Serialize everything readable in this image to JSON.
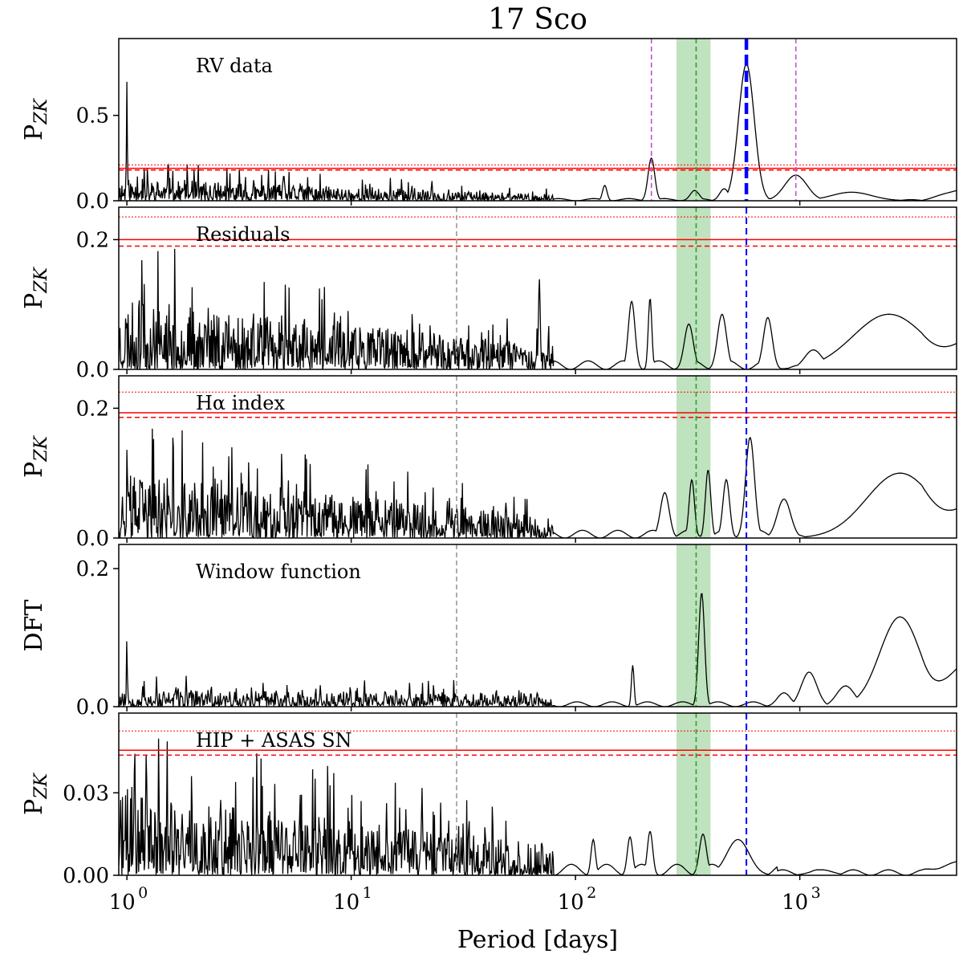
{
  "chart_data": {
    "type": "line",
    "title": "17 Sco",
    "xlabel": "Period [days]",
    "xscale": "log",
    "xlim": [
      0.92,
      5000
    ],
    "xticks": [
      {
        "value": 1,
        "label": "10",
        "exp": "0"
      },
      {
        "value": 10,
        "label": "10",
        "exp": "1"
      },
      {
        "value": 100,
        "label": "10",
        "exp": "2"
      },
      {
        "value": 1000,
        "label": "10",
        "exp": "3"
      }
    ],
    "shared_markers": {
      "green_band": {
        "from": 282,
        "to": 400,
        "color": "#2ca02c"
      },
      "green_line": {
        "x": 345,
        "color": "#2ca02c"
      },
      "gray_line": {
        "x": 29.5,
        "color": "#999999"
      },
      "blue_line": {
        "x": 578,
        "color": "#0000ff"
      },
      "magenta_lines": [
        {
          "x": 218
        },
        {
          "x": 960
        }
      ],
      "magenta_color": "#c050d0",
      "threshold_color": "#ff0000"
    },
    "panels": [
      {
        "ylabel": "P",
        "ylabel_sub": "ZK",
        "label": "RV data",
        "ylim": [
          0,
          0.95
        ],
        "yticks": [
          {
            "value": 0.0,
            "label": "0.0"
          },
          {
            "value": 0.5,
            "label": "0.5"
          }
        ],
        "thresholds": {
          "solid": 0.19,
          "dashed": 0.18,
          "dotted": 0.21
        },
        "show_gray": false,
        "show_magenta": true,
        "blue_thick": true,
        "noise": {
          "base": 0.13,
          "decay": 0.72,
          "seed": 11,
          "density": 700
        },
        "peaks": [
          {
            "x": 1.0,
            "h": 0.7,
            "w": 0.002
          },
          {
            "x": 218,
            "h": 0.25,
            "w": 0.015
          },
          {
            "x": 578,
            "h": 0.8,
            "w": 0.035
          },
          {
            "x": 960,
            "h": 0.15,
            "w": 0.05
          },
          {
            "x": 1700,
            "h": 0.05,
            "w": 0.09
          },
          {
            "x": 135,
            "h": 0.09,
            "w": 0.01
          },
          {
            "x": 340,
            "h": 0.06,
            "w": 0.02
          },
          {
            "x": 460,
            "h": 0.07,
            "w": 0.02
          }
        ],
        "tail": [
          {
            "x": 2500,
            "y": 0.01
          },
          {
            "x": 5000,
            "y": 0.06
          }
        ]
      },
      {
        "ylabel": "P",
        "ylabel_sub": "ZK",
        "label": "Residuals",
        "ylim": [
          0,
          0.25
        ],
        "yticks": [
          {
            "value": 0.0,
            "label": "0.0"
          },
          {
            "value": 0.2,
            "label": "0.2"
          }
        ],
        "thresholds": {
          "solid": 0.2,
          "dashed": 0.19,
          "dotted": 0.235
        },
        "show_gray": true,
        "show_magenta": false,
        "blue_thick": false,
        "noise": {
          "base": 0.11,
          "decay": 0.66,
          "seed": 23,
          "density": 700
        },
        "peaks": [
          {
            "x": 178,
            "h": 0.105,
            "w": 0.015
          },
          {
            "x": 215,
            "h": 0.11,
            "w": 0.008
          },
          {
            "x": 69,
            "h": 0.14,
            "w": 0.004
          },
          {
            "x": 320,
            "h": 0.07,
            "w": 0.02
          },
          {
            "x": 450,
            "h": 0.085,
            "w": 0.02
          },
          {
            "x": 720,
            "h": 0.08,
            "w": 0.02
          },
          {
            "x": 1150,
            "h": 0.03,
            "w": 0.04
          },
          {
            "x": 2500,
            "h": 0.085,
            "w": 0.16
          }
        ],
        "tail": [
          {
            "x": 5000,
            "y": 0.04
          }
        ]
      },
      {
        "ylabel": "P",
        "ylabel_sub": "ZK",
        "label": "Hα index",
        "ylim": [
          0,
          0.25
        ],
        "yticks": [
          {
            "value": 0.0,
            "label": "0.0"
          },
          {
            "value": 0.2,
            "label": "0.2"
          }
        ],
        "thresholds": {
          "solid": 0.193,
          "dashed": 0.186,
          "dotted": 0.225
        },
        "show_gray": true,
        "show_magenta": false,
        "blue_thick": false,
        "noise": {
          "base": 0.1,
          "decay": 0.66,
          "seed": 37,
          "density": 700
        },
        "peaks": [
          {
            "x": 250,
            "h": 0.07,
            "w": 0.02
          },
          {
            "x": 330,
            "h": 0.09,
            "w": 0.012
          },
          {
            "x": 390,
            "h": 0.105,
            "w": 0.012
          },
          {
            "x": 470,
            "h": 0.09,
            "w": 0.015
          },
          {
            "x": 600,
            "h": 0.155,
            "w": 0.02
          },
          {
            "x": 850,
            "h": 0.06,
            "w": 0.03
          },
          {
            "x": 2800,
            "h": 0.1,
            "w": 0.15
          }
        ],
        "tail": [
          {
            "x": 5000,
            "y": 0.045
          }
        ]
      },
      {
        "ylabel": "DFT",
        "ylabel_sub": "",
        "label": "Window function",
        "ylim": [
          0,
          0.235
        ],
        "yticks": [
          {
            "value": 0.0,
            "label": "0.0"
          },
          {
            "value": 0.2,
            "label": "0.2"
          }
        ],
        "thresholds": null,
        "show_gray": true,
        "show_magenta": false,
        "blue_thick": false,
        "noise": {
          "base": 0.025,
          "decay": 0.2,
          "seed": 53,
          "density": 600
        },
        "peaks": [
          {
            "x": 1.0,
            "h": 0.1,
            "w": 0.002
          },
          {
            "x": 180,
            "h": 0.06,
            "w": 0.006
          },
          {
            "x": 365,
            "h": 0.165,
            "w": 0.013
          },
          {
            "x": 1100,
            "h": 0.05,
            "w": 0.035
          },
          {
            "x": 1600,
            "h": 0.03,
            "w": 0.04
          },
          {
            "x": 2800,
            "h": 0.13,
            "w": 0.09
          },
          {
            "x": 850,
            "h": 0.02,
            "w": 0.03
          }
        ],
        "tail": [
          {
            "x": 5000,
            "y": 0.055
          }
        ]
      },
      {
        "ylabel": "P",
        "ylabel_sub": "ZK",
        "label": "HIP + ASAS SN",
        "ylim": [
          0,
          0.059
        ],
        "yticks": [
          {
            "value": 0.0,
            "label": "0.00"
          },
          {
            "value": 0.03,
            "label": "0.03"
          }
        ],
        "thresholds": {
          "solid": 0.0455,
          "dashed": 0.0437,
          "dotted": 0.0525
        },
        "show_gray": true,
        "show_magenta": false,
        "blue_thick": false,
        "noise": {
          "base": 0.03,
          "decay": 0.62,
          "seed": 71,
          "density": 700
        },
        "peaks": [
          {
            "x": 1.22,
            "h": 0.045,
            "w": 0.003
          },
          {
            "x": 120,
            "h": 0.013,
            "w": 0.01
          },
          {
            "x": 175,
            "h": 0.014,
            "w": 0.012
          },
          {
            "x": 215,
            "h": 0.016,
            "w": 0.012
          },
          {
            "x": 370,
            "h": 0.015,
            "w": 0.016
          },
          {
            "x": 530,
            "h": 0.013,
            "w": 0.05
          },
          {
            "x": 1250,
            "h": 0.002,
            "w": 0.05
          }
        ],
        "tail": [
          {
            "x": 5000,
            "y": 0.005
          }
        ]
      }
    ]
  }
}
